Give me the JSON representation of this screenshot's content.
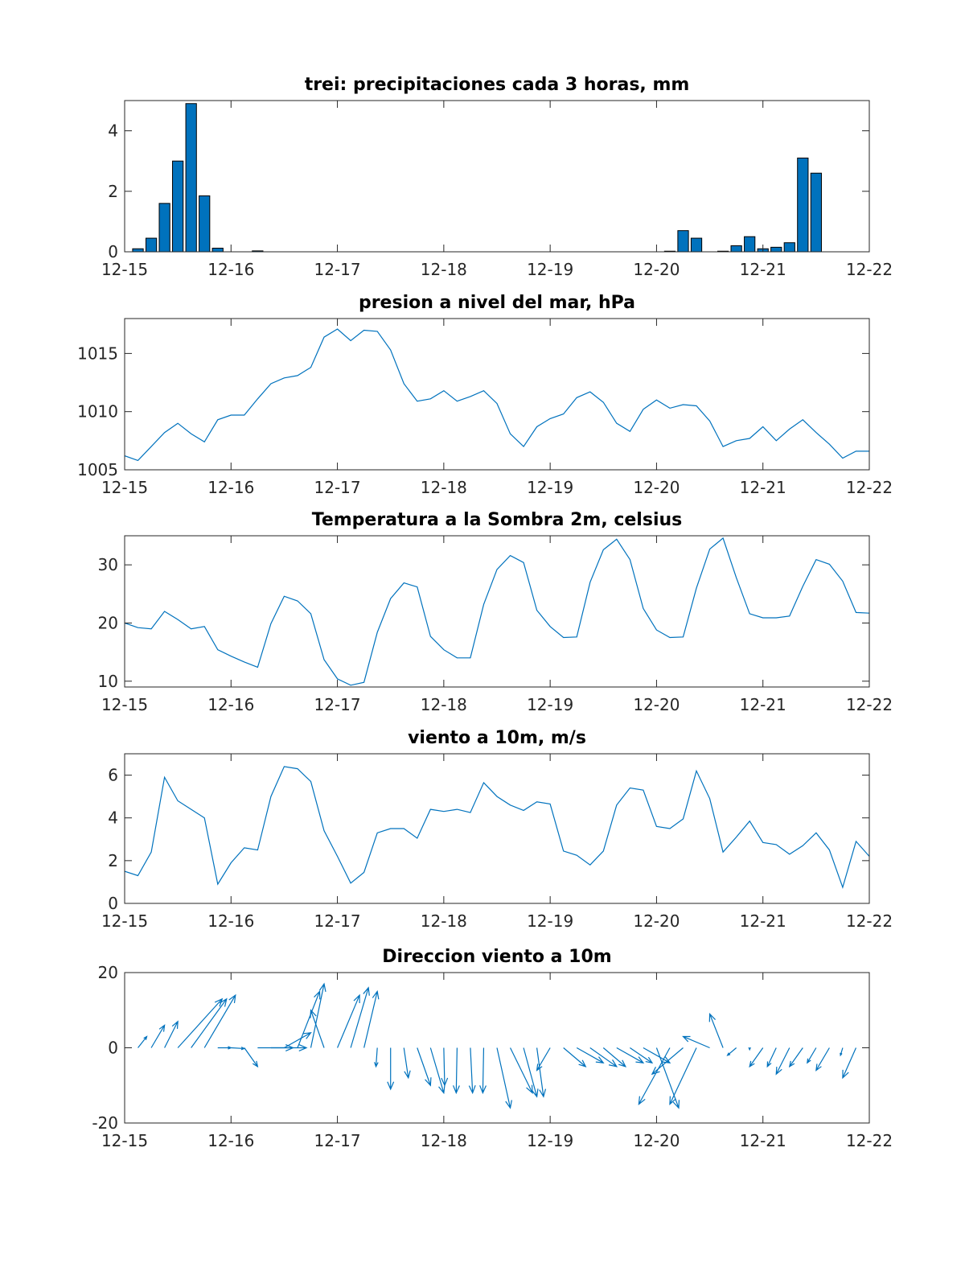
{
  "colors": {
    "series": "#0072BD",
    "axes": "#262626",
    "background": "#ffffff"
  },
  "chart_data": [
    {
      "type": "bar",
      "title": "trei: precipitaciones cada 3 horas, mm",
      "xlabel": "",
      "ylabel": "",
      "xlim": [
        0,
        168
      ],
      "ylim": [
        0,
        5
      ],
      "x_ticks": [
        0,
        24,
        48,
        72,
        96,
        120,
        144,
        168
      ],
      "x_tick_labels": [
        "12-15",
        "12-16",
        "12-17",
        "12-18",
        "12-19",
        "12-20",
        "12-21",
        "12-22"
      ],
      "y_ticks": [
        0,
        2,
        4
      ],
      "y_tick_labels": [
        "0",
        "2",
        "4"
      ],
      "x": [
        3,
        6,
        9,
        12,
        15,
        18,
        21,
        24,
        27,
        30,
        123,
        126,
        129,
        132,
        135,
        138,
        141,
        144,
        147,
        150,
        153,
        156,
        159,
        162,
        165,
        168
      ],
      "values": [
        0.1,
        0.45,
        1.6,
        3.0,
        4.9,
        1.85,
        0.12,
        0,
        0,
        0.03,
        0.02,
        0.7,
        0.45,
        0,
        0.02,
        0.2,
        0.5,
        0.1,
        0.15,
        0.3,
        3.1,
        2.6,
        0,
        0,
        0,
        0
      ]
    },
    {
      "type": "line",
      "title": "presion a nivel del mar, hPa",
      "xlabel": "",
      "ylabel": "",
      "xlim": [
        0,
        168
      ],
      "ylim": [
        1005,
        1018
      ],
      "x_ticks": [
        0,
        24,
        48,
        72,
        96,
        120,
        144,
        168
      ],
      "x_tick_labels": [
        "12-15",
        "12-16",
        "12-17",
        "12-18",
        "12-19",
        "12-20",
        "12-21",
        "12-22"
      ],
      "y_ticks": [
        1005,
        1010,
        1015
      ],
      "y_tick_labels": [
        "1005",
        "1010",
        "1015"
      ],
      "x": [
        0,
        3,
        6,
        9,
        12,
        15,
        18,
        21,
        24,
        27,
        30,
        33,
        36,
        39,
        42,
        45,
        48,
        51,
        54,
        57,
        60,
        63,
        66,
        69,
        72,
        75,
        78,
        81,
        84,
        87,
        90,
        93,
        96,
        99,
        102,
        105,
        108,
        111,
        114,
        117,
        120,
        123,
        126,
        129,
        132,
        135,
        138,
        141,
        144,
        147,
        150,
        153,
        156,
        159,
        162,
        165,
        168
      ],
      "values": [
        1006.2,
        1005.8,
        1007.0,
        1008.2,
        1009.0,
        1008.1,
        1007.4,
        1009.3,
        1009.7,
        1009.7,
        1011.1,
        1012.4,
        1012.9,
        1013.1,
        1013.8,
        1016.4,
        1017.1,
        1016.1,
        1017.0,
        1016.9,
        1015.3,
        1012.4,
        1010.9,
        1011.1,
        1011.8,
        1010.9,
        1011.3,
        1011.8,
        1010.7,
        1008.1,
        1007.0,
        1008.7,
        1009.4,
        1009.8,
        1011.2,
        1011.7,
        1010.8,
        1009.0,
        1008.3,
        1010.2,
        1011.0,
        1010.3,
        1010.6,
        1010.5,
        1009.2,
        1007.0,
        1007.5,
        1007.7,
        1008.7,
        1007.5,
        1008.5,
        1009.3,
        1008.2,
        1007.2,
        1006.0,
        1006.6,
        1006.6
      ]
    },
    {
      "type": "line",
      "title": "Temperatura a la Sombra 2m, celsius",
      "xlabel": "",
      "ylabel": "",
      "xlim": [
        0,
        168
      ],
      "ylim": [
        9,
        35
      ],
      "x_ticks": [
        0,
        24,
        48,
        72,
        96,
        120,
        144,
        168
      ],
      "x_tick_labels": [
        "12-15",
        "12-16",
        "12-17",
        "12-18",
        "12-19",
        "12-20",
        "12-21",
        "12-22"
      ],
      "y_ticks": [
        10,
        20,
        30
      ],
      "y_tick_labels": [
        "10",
        "20",
        "30"
      ],
      "x": [
        0,
        3,
        6,
        9,
        12,
        15,
        18,
        21,
        24,
        27,
        30,
        33,
        36,
        39,
        42,
        45,
        48,
        51,
        54,
        57,
        60,
        63,
        66,
        69,
        72,
        75,
        78,
        81,
        84,
        87,
        90,
        93,
        96,
        99,
        102,
        105,
        108,
        111,
        114,
        117,
        120,
        123,
        126,
        129,
        132,
        135,
        138,
        141,
        144,
        147,
        150,
        153,
        156,
        159,
        162,
        165,
        168
      ],
      "values": [
        20.0,
        19.2,
        19.0,
        22.0,
        20.6,
        19.0,
        19.4,
        15.4,
        14.3,
        13.3,
        12.4,
        19.9,
        24.6,
        23.8,
        21.6,
        13.7,
        10.4,
        9.3,
        9.8,
        18.4,
        24.2,
        26.9,
        26.2,
        17.7,
        15.4,
        14.0,
        14.0,
        23.2,
        29.2,
        31.6,
        30.4,
        22.2,
        19.4,
        17.5,
        17.6,
        27.0,
        32.6,
        34.4,
        30.9,
        22.5,
        18.8,
        17.5,
        17.6,
        26.0,
        32.7,
        34.6,
        27.8,
        21.6,
        20.9,
        20.9,
        21.2,
        26.3,
        30.9,
        30.1,
        27.2,
        21.8,
        21.7
      ]
    },
    {
      "type": "line",
      "title": "viento a 10m, m/s",
      "xlabel": "",
      "ylabel": "",
      "xlim": [
        0,
        168
      ],
      "ylim": [
        0,
        7
      ],
      "x_ticks": [
        0,
        24,
        48,
        72,
        96,
        120,
        144,
        168
      ],
      "x_tick_labels": [
        "12-15",
        "12-16",
        "12-17",
        "12-18",
        "12-19",
        "12-20",
        "12-21",
        "12-22"
      ],
      "y_ticks": [
        0,
        2,
        4,
        6
      ],
      "y_tick_labels": [
        "0",
        "2",
        "4",
        "6"
      ],
      "x": [
        0,
        3,
        6,
        9,
        12,
        15,
        18,
        21,
        24,
        27,
        30,
        33,
        36,
        39,
        42,
        45,
        48,
        51,
        54,
        57,
        60,
        63,
        66,
        69,
        72,
        75,
        78,
        81,
        84,
        87,
        90,
        93,
        96,
        99,
        102,
        105,
        108,
        111,
        114,
        117,
        120,
        123,
        126,
        129,
        132,
        135,
        138,
        141,
        144,
        147,
        150,
        153,
        156,
        159,
        162,
        165,
        168
      ],
      "values": [
        1.5,
        1.3,
        2.4,
        5.9,
        4.8,
        4.4,
        4.0,
        0.9,
        1.9,
        2.6,
        2.5,
        5.0,
        6.4,
        6.3,
        5.7,
        3.4,
        2.2,
        0.95,
        1.45,
        3.3,
        3.5,
        3.5,
        3.05,
        4.4,
        4.3,
        4.4,
        4.25,
        5.65,
        5.0,
        4.6,
        4.35,
        4.75,
        4.65,
        2.45,
        2.25,
        1.8,
        2.45,
        4.6,
        5.4,
        5.3,
        3.6,
        3.5,
        3.95,
        6.2,
        4.9,
        2.4,
        3.1,
        3.85,
        2.85,
        2.75,
        2.3,
        2.7,
        3.3,
        2.5,
        0.75,
        2.9,
        2.2
      ]
    },
    {
      "type": "quiver",
      "title": "Direccion viento a 10m",
      "xlabel": "",
      "ylabel": "",
      "xlim": [
        0,
        168
      ],
      "ylim": [
        -20,
        20
      ],
      "x_ticks": [
        0,
        24,
        48,
        72,
        96,
        120,
        144,
        168
      ],
      "x_tick_labels": [
        "12-15",
        "12-16",
        "12-17",
        "12-18",
        "12-19",
        "12-20",
        "12-21",
        "12-22"
      ],
      "y_ticks": [
        -20,
        0,
        20
      ],
      "y_tick_labels": [
        "-20",
        "0",
        "20"
      ],
      "x": [
        3,
        6,
        9,
        12,
        15,
        18,
        21,
        24,
        27,
        30,
        33,
        36,
        39,
        42,
        45,
        48,
        51,
        54,
        57,
        60,
        63,
        66,
        69,
        72,
        75,
        78,
        81,
        84,
        87,
        90,
        93,
        96,
        99,
        102,
        105,
        108,
        111,
        114,
        117,
        120,
        123,
        126,
        129,
        132,
        135,
        138,
        141,
        144,
        147,
        150,
        153,
        156,
        159,
        162,
        165
      ],
      "u": [
        2,
        3,
        3,
        10,
        8,
        7,
        3,
        3,
        3,
        8,
        8,
        6,
        5,
        3,
        -3,
        5,
        4,
        3,
        -0.3,
        0,
        1,
        3,
        3,
        0.2,
        -0.2,
        0.5,
        -0.2,
        3,
        5,
        3,
        1.5,
        -3,
        5,
        6,
        6,
        5,
        6,
        5,
        6,
        5,
        -7,
        -7,
        -6,
        -6,
        -3,
        -2,
        0,
        -3,
        -2,
        -3,
        -3,
        -2,
        -3,
        -0.5,
        -3
      ],
      "v": [
        3,
        6,
        7,
        13,
        13,
        14,
        0,
        -0.2,
        -5,
        0,
        0,
        4,
        15,
        17,
        10,
        14,
        16,
        15,
        -5,
        -11,
        -8,
        -10,
        -12,
        -10,
        -12,
        -12,
        -12,
        -16,
        -12,
        -13,
        -13,
        -6,
        -5,
        -4,
        -5,
        -5,
        -4,
        -4,
        -4,
        -16,
        -15,
        -7,
        -15,
        3,
        9,
        -2,
        -0.5,
        -5,
        -5,
        -7,
        -5,
        -4,
        -6,
        -2,
        -8
      ]
    }
  ]
}
